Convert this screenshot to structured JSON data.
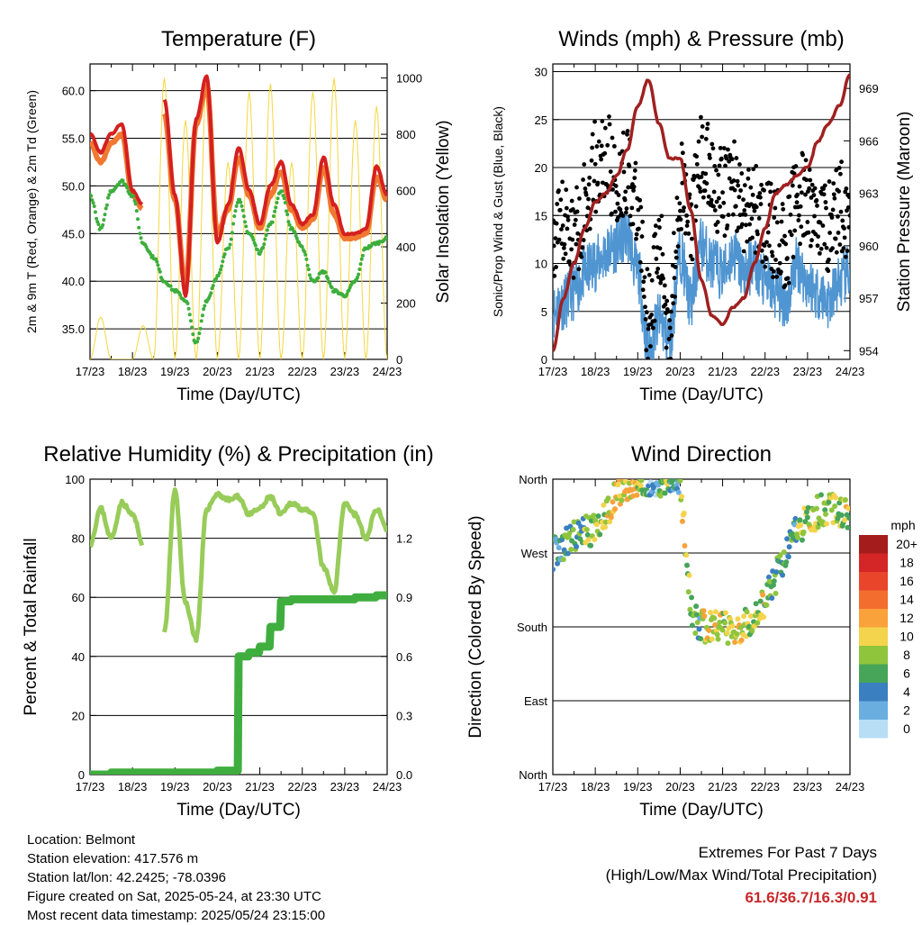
{
  "x_tick_labels": [
    "17/23",
    "18/23",
    "19/23",
    "20/23",
    "21/23",
    "22/23",
    "23/23",
    "24/23"
  ],
  "x_label": "Time (Day/UTC)",
  "chart_data": [
    {
      "type": "line",
      "title": "Temperature (F)",
      "xlabel": "Time (Day/UTC)",
      "ylabel": "2m & 9m T (Red, Orange) & 2m Td (Green)",
      "y2label": "Solar Insolation (Yellow)",
      "ylim": [
        31.8,
        62.8
      ],
      "y_ticks": [
        "35.0",
        "40.0",
        "45.0",
        "50.0",
        "55.0",
        "60.0"
      ],
      "y2lim": [
        0,
        1050
      ],
      "y2_ticks": [
        "0",
        "200",
        "400",
        "600",
        "800",
        "1000"
      ],
      "x": [
        0,
        0.25,
        0.5,
        0.75,
        1,
        1.25,
        1.5,
        1.75,
        2,
        2.25,
        2.5,
        2.75,
        3,
        3.25,
        3.5,
        3.75,
        4,
        4.25,
        4.5,
        4.75,
        5,
        5.25,
        5.5,
        5.75,
        6,
        6.25,
        6.5,
        6.75,
        7
      ],
      "series": [
        {
          "name": "9m T",
          "color": "#f07830",
          "values": [
            54.5,
            52.5,
            54.5,
            55.5,
            49,
            47.5,
            null,
            57.5,
            48.5,
            39.5,
            56.5,
            60.5,
            45,
            47.5,
            53,
            49,
            45.5,
            49,
            51.5,
            47.5,
            45.5,
            46.5,
            52,
            47,
            44.5,
            44.5,
            45,
            51,
            48.5
          ]
        },
        {
          "name": "2m T",
          "color": "#d42020",
          "values": [
            55.5,
            53.5,
            55.5,
            56.5,
            49.5,
            48,
            null,
            59,
            49,
            38.5,
            57,
            61.5,
            44,
            48,
            54,
            49.5,
            46,
            50,
            52.5,
            48,
            46,
            47,
            53,
            48,
            45,
            45,
            45.5,
            52,
            49
          ]
        },
        {
          "name": "2m Td",
          "color": "#3cae3c",
          "values": [
            49,
            45.5,
            49.5,
            50.5,
            49,
            44,
            42.5,
            40,
            39,
            38,
            33.5,
            38,
            40.5,
            43.5,
            48.5,
            45,
            43,
            46,
            49.5,
            45.5,
            43.5,
            40,
            41,
            39,
            38.5,
            40,
            43.5,
            44,
            44.5
          ]
        },
        {
          "name": "Solar Insolation",
          "color": "#f5d640",
          "axis": "y2",
          "values": [
            0,
            150,
            0,
            0,
            0,
            120,
            0,
            1000,
            0,
            850,
            0,
            1000,
            0,
            700,
            0,
            950,
            0,
            980,
            0,
            700,
            0,
            950,
            0,
            1000,
            0,
            850,
            0,
            900,
            0
          ]
        }
      ]
    },
    {
      "type": "line",
      "title": "Winds (mph) & Pressure (mb)",
      "xlabel": "Time (Day/UTC)",
      "ylabel": "Sonic/Prop Wind & Gust (Blue, Black)",
      "y2label": "Station Pressure (Maroon)",
      "ylim": [
        0,
        30.8
      ],
      "y_ticks": [
        "0",
        "5",
        "10",
        "15",
        "20",
        "25",
        "30"
      ],
      "y2lim": [
        953.5,
        970.4
      ],
      "y2_ticks": [
        "954",
        "957",
        "960",
        "963",
        "966",
        "969"
      ],
      "x": [
        0,
        0.25,
        0.5,
        0.75,
        1,
        1.25,
        1.5,
        1.75,
        2,
        2.25,
        2.5,
        2.75,
        3,
        3.25,
        3.5,
        3.75,
        4,
        4.25,
        4.5,
        4.75,
        5,
        5.25,
        5.5,
        5.75,
        6,
        6.25,
        6.5,
        6.75,
        7
      ],
      "series": [
        {
          "name": "Sonic/Prop Wind",
          "color": "#4f95d1",
          "values": [
            5,
            6,
            7,
            9,
            10,
            11,
            12,
            13,
            9,
            1,
            4,
            2,
            11,
            6,
            12,
            10,
            9,
            11,
            9,
            10,
            8,
            7,
            6,
            10,
            8,
            7,
            6,
            8,
            9
          ]
        },
        {
          "name": "Gust",
          "color": "#000000",
          "values": [
            11,
            14,
            13,
            16,
            20,
            21,
            18,
            20,
            15,
            5,
            11,
            4,
            18,
            14,
            21,
            19,
            17,
            19,
            15,
            16,
            14,
            13,
            12,
            17,
            16,
            15,
            14,
            16,
            15
          ]
        },
        {
          "name": "Station Pressure",
          "color": "#a02020",
          "axis": "y2",
          "values": [
            954,
            957,
            959,
            961,
            962.5,
            963,
            964,
            965.5,
            968,
            969.5,
            967,
            965,
            965,
            962,
            958,
            956,
            955.5,
            956.5,
            957,
            959,
            961,
            963,
            963.5,
            964,
            964.5,
            966,
            967,
            968,
            969.8
          ]
        }
      ]
    },
    {
      "type": "line",
      "title": "Relative Humidity (%) & Precipitation (in)",
      "xlabel": "Time (Day/UTC)",
      "ylabel": "Percent & Total Rainfall",
      "ylim": [
        0,
        100
      ],
      "y_ticks": [
        "0",
        "20",
        "40",
        "60",
        "80",
        "100"
      ],
      "y2lim": [
        0,
        1.5
      ],
      "y2_ticks": [
        "0.0",
        "0.3",
        "0.6",
        "0.9",
        "1.2"
      ],
      "x": [
        0,
        0.25,
        0.5,
        0.75,
        1,
        1.25,
        1.5,
        1.75,
        2,
        2.25,
        2.5,
        2.75,
        3,
        3.25,
        3.5,
        3.75,
        4,
        4.25,
        4.5,
        4.75,
        5,
        5.25,
        5.5,
        5.75,
        6,
        6.25,
        6.5,
        6.75,
        7
      ],
      "series": [
        {
          "name": "Relative Humidity",
          "color": "#98cc5a",
          "values": [
            78,
            90,
            80,
            92,
            88,
            78,
            null,
            48,
            96,
            58,
            46,
            90,
            95,
            93,
            94,
            88,
            90,
            94,
            88,
            92,
            90,
            88,
            70,
            62,
            92,
            88,
            80,
            90,
            83
          ]
        },
        {
          "name": "Total Precipitation",
          "color": "#3fae3f",
          "axis": "y2",
          "values": [
            0,
            0,
            0.01,
            0.01,
            0.01,
            0.01,
            0.01,
            0.01,
            0.01,
            0.01,
            0.01,
            0.01,
            0.02,
            0.02,
            0.6,
            0.62,
            0.65,
            0.75,
            0.88,
            0.89,
            0.89,
            0.89,
            0.89,
            0.89,
            0.89,
            0.9,
            0.9,
            0.91,
            0.91
          ]
        }
      ]
    },
    {
      "type": "scatter",
      "title": "Wind Direction",
      "xlabel": "Time (Day/UTC)",
      "ylabel": "Direction (Colored By Speed)",
      "y_ticks": [
        "North",
        "East",
        "South",
        "West",
        "North"
      ],
      "colorbar": {
        "title": "mph",
        "labels": [
          "20+",
          "18",
          "16",
          "14",
          "12",
          "10",
          "8",
          "6",
          "4",
          "2",
          "0"
        ],
        "colors": [
          "#a51c1c",
          "#d42626",
          "#e8452a",
          "#f26d2e",
          "#f9a13b",
          "#f4d44c",
          "#8fc53d",
          "#46a559",
          "#3a7fc0",
          "#6aaee0",
          "#b7def5"
        ]
      },
      "x": [
        0,
        0.25,
        0.5,
        0.75,
        1,
        1.25,
        1.5,
        1.75,
        2,
        2.25,
        2.5,
        2.75,
        3,
        3.25,
        3.5,
        3.75,
        4,
        4.25,
        4.5,
        4.75,
        5,
        5.25,
        5.5,
        5.75,
        6,
        6.25,
        6.5,
        6.75,
        7
      ],
      "direction_deg": [
        270,
        280,
        290,
        295,
        300,
        320,
        340,
        355,
        360,
        360,
        360,
        355,
        360,
        200,
        180,
        182,
        180,
        178,
        182,
        190,
        210,
        240,
        270,
        300,
        310,
        320,
        325,
        320,
        318
      ],
      "speed_mph": [
        4,
        6,
        6,
        8,
        8,
        10,
        10,
        10,
        8,
        2,
        8,
        4,
        9,
        5,
        10,
        10,
        9,
        10,
        8,
        9,
        6,
        6,
        5,
        8,
        9,
        8,
        8,
        9,
        8
      ]
    }
  ],
  "info": {
    "location": "Location: Belmont",
    "elevation": "Station elevation: 417.576 m",
    "latlon": "Station lat/lon: 42.2425; -78.0396",
    "created": "Figure created on Sat, 2025-05-24, at 23:30 UTC",
    "recent": "Most recent data timestamp: 2025/05/24 23:15:00"
  },
  "extremes": {
    "line1": "Extremes For Past 7 Days",
    "line2": "(High/Low/Max Wind/Total Precipitation)",
    "values": "61.6/36.7/16.3/0.91"
  }
}
